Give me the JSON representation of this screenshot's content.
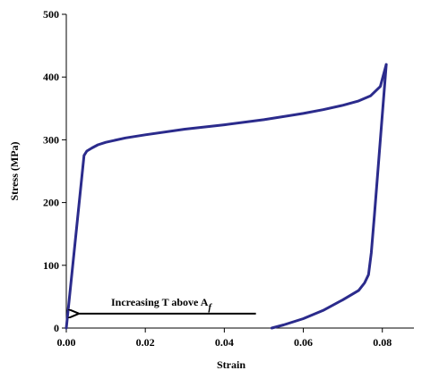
{
  "chart_data": {
    "type": "line",
    "title": "",
    "xlabel": "Strain",
    "ylabel": "Stress (MPa)",
    "xlim": [
      0,
      0.088
    ],
    "ylim": [
      0,
      500
    ],
    "xticks": [
      0,
      0.02,
      0.04,
      0.06,
      0.08
    ],
    "xtick_labels": [
      "0.00",
      "0.02",
      "0.04",
      "0.06",
      "0.08"
    ],
    "yticks": [
      0,
      100,
      200,
      300,
      400,
      500
    ],
    "ytick_labels": [
      "0",
      "100",
      "200",
      "300",
      "400",
      "500"
    ],
    "grid": false,
    "series": [
      {
        "color": "#2b2b8c",
        "x": [
          0.0,
          0.0045,
          0.0052,
          0.0065,
          0.008,
          0.01,
          0.015,
          0.02,
          0.03,
          0.04,
          0.05,
          0.06,
          0.065,
          0.07,
          0.074,
          0.077,
          0.0795,
          0.081
        ],
        "y": [
          0,
          275,
          282,
          287,
          292,
          296,
          303,
          308,
          317,
          324,
          332,
          342,
          348,
          355,
          362,
          370,
          385,
          420
        ]
      },
      {
        "color": "#2b2b8c",
        "x": [
          0.081,
          0.0795,
          0.078,
          0.0772,
          0.0765,
          0.0755,
          0.074,
          0.07,
          0.065,
          0.06,
          0.055,
          0.052
        ],
        "y": [
          420,
          300,
          180,
          120,
          85,
          72,
          60,
          45,
          28,
          15,
          5,
          0
        ]
      }
    ],
    "annotation": {
      "text": "Increasing T above A",
      "subscript": "f",
      "arrow_from": [
        0.048,
        23
      ],
      "arrow_to": [
        0.003,
        23
      ]
    }
  }
}
